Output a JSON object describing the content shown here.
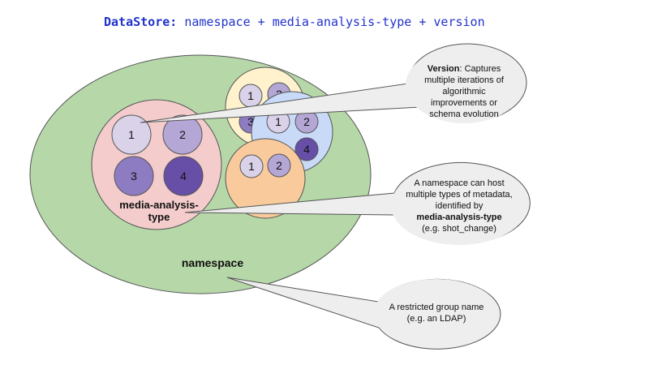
{
  "title": {
    "key": "DataStore:",
    "rest": " namespace + media-analysis-type + version"
  },
  "circles": {
    "main": [
      "1",
      "2",
      "3",
      "4"
    ],
    "yellow": [
      "1",
      "2",
      "3"
    ],
    "blue": [
      "1",
      "2",
      "4"
    ],
    "orange": [
      "1",
      "2"
    ]
  },
  "labels": {
    "mat_line1": "media-analysis-",
    "mat_line2": "type",
    "namespace": "namespace"
  },
  "callouts": {
    "version": {
      "bold": "Version",
      "text": ": Captures multiple iterations of algorithmic improvements or schema evolution"
    },
    "namespace_host": {
      "text": "A namespace can host multiple types of metadata, identified by",
      "bold": "media-analysis-type",
      "example": "(e.g. shot_change)"
    },
    "restricted": {
      "text": "A restricted group name",
      "example": "(e.g. an LDAP)"
    }
  },
  "colors": {
    "title": "#2233cc",
    "namespace_fill": "#b6d7a8",
    "main_fill": "#f4cccc",
    "yellow_fill": "#fff2cc",
    "blue_fill": "#c9daf8",
    "orange_fill": "#f9cb9c",
    "circle_light": "#d9d2e9",
    "circle_mid": "#b4a7d6",
    "circle_dark": "#8e7cc3",
    "circle_darkest": "#674ea7",
    "callout_fill": "#eeeeee"
  }
}
